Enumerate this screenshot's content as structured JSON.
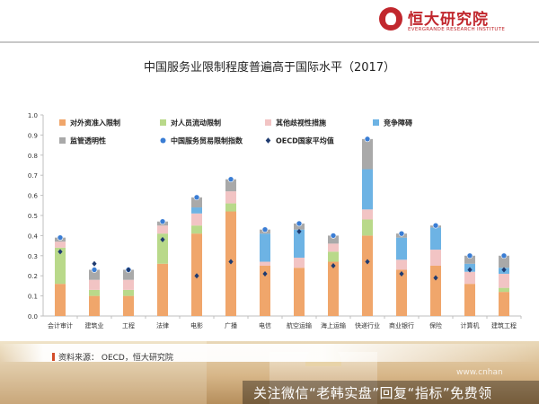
{
  "header": {
    "logo_cn": "恒大研究院",
    "logo_en": "EVERGRANDE RESEARCH INSTITUTE"
  },
  "title": "中国服务业限制程度普遍高于国际水平（2017）",
  "source": "资料来源： OECD，恒大研究院",
  "footer": {
    "promo": "关注微信“老韩实盘”回复“指标”免费领",
    "watermark": "www.cnhan"
  },
  "chart_data": {
    "type": "bar",
    "stacked": true,
    "categories": [
      "会计审计",
      "建筑业",
      "工程",
      "法律",
      "电影",
      "广播",
      "电信",
      "航空运输",
      "海上运输",
      "快递行业",
      "商业银行",
      "保险",
      "计算机",
      "建筑工程"
    ],
    "series": [
      {
        "name": "对外资准入限制",
        "color": "#f0a66b",
        "values": [
          0.16,
          0.1,
          0.1,
          0.26,
          0.41,
          0.52,
          0.25,
          0.24,
          0.27,
          0.4,
          0.23,
          0.25,
          0.16,
          0.12
        ]
      },
      {
        "name": "对人员流动限制",
        "color": "#b9d98a",
        "values": [
          0.18,
          0.03,
          0.03,
          0.15,
          0.04,
          0.04,
          0.0,
          0.0,
          0.05,
          0.08,
          0.0,
          0.0,
          0.0,
          0.02
        ]
      },
      {
        "name": "其他歧视性措施",
        "color": "#f2c4c4",
        "values": [
          0.03,
          0.05,
          0.05,
          0.04,
          0.06,
          0.06,
          0.02,
          0.05,
          0.04,
          0.05,
          0.05,
          0.08,
          0.06,
          0.07
        ]
      },
      {
        "name": "竞争障碍",
        "color": "#6db3e4",
        "values": [
          0.0,
          0.0,
          0.0,
          0.0,
          0.03,
          0.0,
          0.14,
          0.14,
          0.0,
          0.2,
          0.11,
          0.11,
          0.04,
          0.03
        ]
      },
      {
        "name": "监管透明性",
        "color": "#a9a9a9",
        "values": [
          0.02,
          0.05,
          0.05,
          0.02,
          0.05,
          0.06,
          0.02,
          0.03,
          0.04,
          0.15,
          0.02,
          0.01,
          0.04,
          0.06
        ]
      }
    ],
    "index_label": "中国服务贸易限制指数",
    "index_color": "#3a7dd4",
    "index_values": [
      0.39,
      0.23,
      0.23,
      0.47,
      0.59,
      0.68,
      0.43,
      0.46,
      0.4,
      0.88,
      0.41,
      0.45,
      0.3,
      0.3
    ],
    "oecd_label": "OECD国家平均值",
    "oecd_color": "#1f3b70",
    "oecd_values": [
      0.32,
      0.26,
      0.23,
      0.38,
      0.2,
      0.27,
      0.21,
      0.42,
      0.25,
      0.27,
      0.21,
      0.19,
      0.23,
      0.23
    ],
    "ylim": [
      0,
      1.0
    ],
    "yticks": [
      "0.0",
      "0.1",
      "0.2",
      "0.3",
      "0.4",
      "0.5",
      "0.6",
      "0.7",
      "0.8",
      "0.9",
      "1.0"
    ],
    "legend_position": "top-left",
    "grid": false
  }
}
